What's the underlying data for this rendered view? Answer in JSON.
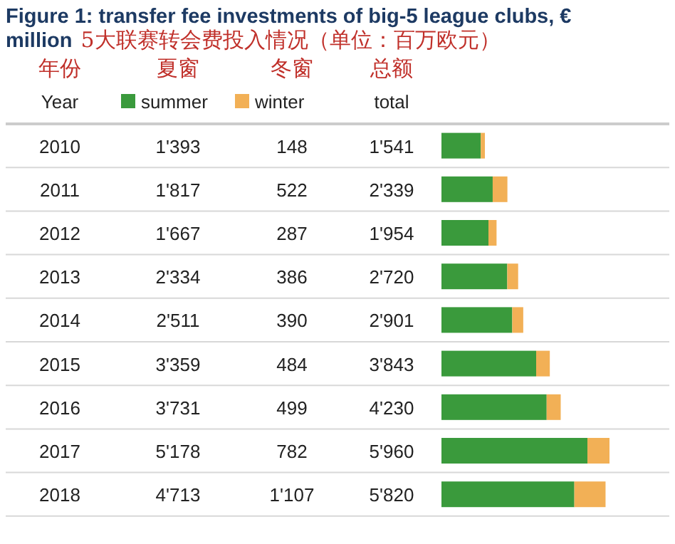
{
  "chart_data": {
    "type": "bar",
    "orientation": "horizontal",
    "stacked": true,
    "title": "Figure 1: transfer fee investments of big-5 league clubs, € million",
    "subtitle": "5大联赛转会费投入情况（单位：百万欧元）",
    "ylabel": "Year",
    "annotations": [
      "年份",
      "夏窗",
      "冬窗",
      "总额",
      "total"
    ],
    "categories": [
      "2010",
      "2011",
      "2012",
      "2013",
      "2014",
      "2015",
      "2016",
      "2017",
      "2018"
    ],
    "series": [
      {
        "name": "summer",
        "color": "#3a9a3c",
        "values": [
          1393,
          1817,
          1667,
          2334,
          2511,
          3359,
          3731,
          5178,
          4713
        ],
        "value_labels": [
          "1'393",
          "1'817",
          "1'667",
          "2'334",
          "2'511",
          "3'359",
          "3'731",
          "5'178",
          "4'713"
        ]
      },
      {
        "name": "winter",
        "color": "#f2b056",
        "values": [
          148,
          522,
          287,
          386,
          390,
          484,
          499,
          782,
          1107
        ],
        "value_labels": [
          "148",
          "522",
          "287",
          "386",
          "390",
          "484",
          "499",
          "782",
          "1'107"
        ]
      }
    ],
    "totals": [
      "1'541",
      "2'339",
      "1'954",
      "2'720",
      "2'901",
      "3'843",
      "4'230",
      "5'960",
      "5'820"
    ],
    "legend": "top"
  }
}
